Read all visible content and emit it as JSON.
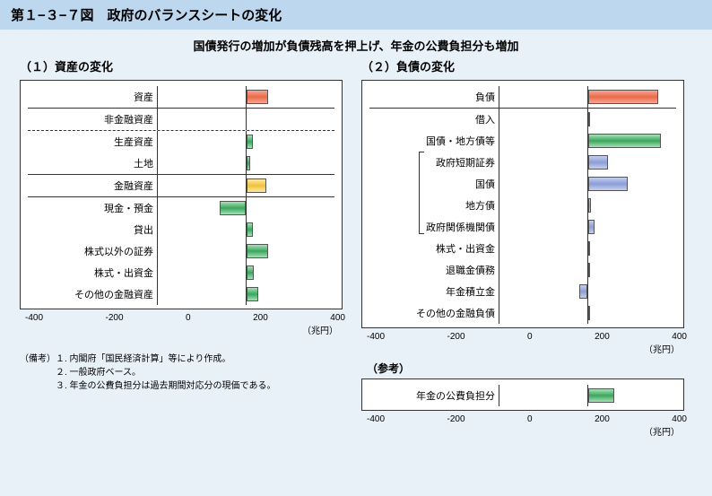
{
  "title": "第１−３−７図　政府のバランスシートの変化",
  "subtitle": "国債発行の増加が負債残高を押上げ、年金の公費負担分も増加",
  "axis": {
    "ticks": [
      "-400",
      "-200",
      "0",
      "200",
      "400"
    ],
    "unit": "（兆円）",
    "min": -400,
    "max": 400,
    "span": 800
  },
  "sections": {
    "assets": {
      "heading": "（１）資産の変化",
      "rows": [
        {
          "label": "資産",
          "value": 100,
          "color": "g-red",
          "sep": "solid_after"
        },
        {
          "label": "非金融資産",
          "value": 0,
          "color": "",
          "sep": "dash_after"
        },
        {
          "label": "生産資産",
          "value": 30,
          "color": "g-green",
          "sep": ""
        },
        {
          "label": "土地",
          "value": 20,
          "color": "g-green",
          "sep": "solid_after"
        },
        {
          "label": "金融資産",
          "value": 90,
          "color": "g-yellow",
          "sep": "solid_after"
        },
        {
          "label": "現金・預金",
          "value": -120,
          "color": "g-green",
          "sep": ""
        },
        {
          "label": "貸出",
          "value": 30,
          "color": "g-green",
          "sep": ""
        },
        {
          "label": "株式以外の証券",
          "value": 100,
          "color": "g-green",
          "sep": ""
        },
        {
          "label": "株式・出資金",
          "value": 35,
          "color": "g-green",
          "sep": ""
        },
        {
          "label": "その他の金融資産",
          "value": 55,
          "color": "g-green",
          "sep": ""
        }
      ]
    },
    "liabilities": {
      "heading": "（２）負債の変化",
      "rows": [
        {
          "label": "負債",
          "value": 320,
          "color": "g-red",
          "sep": "solid_after"
        },
        {
          "label": "借入",
          "value": 8,
          "color": "g-blue",
          "sep": ""
        },
        {
          "label": "国債・地方債等",
          "value": 330,
          "color": "g-green",
          "sep": ""
        },
        {
          "label": "政府短期証券",
          "value": 90,
          "color": "g-blue",
          "sep": "",
          "indent": true
        },
        {
          "label": "国債",
          "value": 180,
          "color": "g-blue",
          "sep": "",
          "indent": true
        },
        {
          "label": "地方債",
          "value": 15,
          "color": "g-blue",
          "sep": "",
          "indent": true
        },
        {
          "label": "政府関係機関債",
          "value": 30,
          "color": "g-blue",
          "sep": "",
          "indent": true
        },
        {
          "label": "株式・出資金",
          "value": 12,
          "color": "g-blue",
          "sep": ""
        },
        {
          "label": "退職金債務",
          "value": 10,
          "color": "g-blue",
          "sep": ""
        },
        {
          "label": "年金積立金",
          "value": -40,
          "color": "g-blue",
          "sep": ""
        },
        {
          "label": "その他の金融負債",
          "value": 10,
          "color": "g-blue",
          "sep": ""
        }
      ],
      "bracket": {
        "from_row": 3,
        "to_row": 6
      }
    },
    "reference": {
      "heading": "（参考）",
      "rows": [
        {
          "label": "年金の公費負担分",
          "value": 120,
          "color": "g-green",
          "sep": ""
        }
      ]
    }
  },
  "notes": {
    "head": "（備考）",
    "items": [
      "１.  内閣府「国民経済計算」等により作成。",
      "２.  一般政府ベース。",
      "３.  年金の公費負担分は過去期間対応分の現価である。"
    ]
  }
}
